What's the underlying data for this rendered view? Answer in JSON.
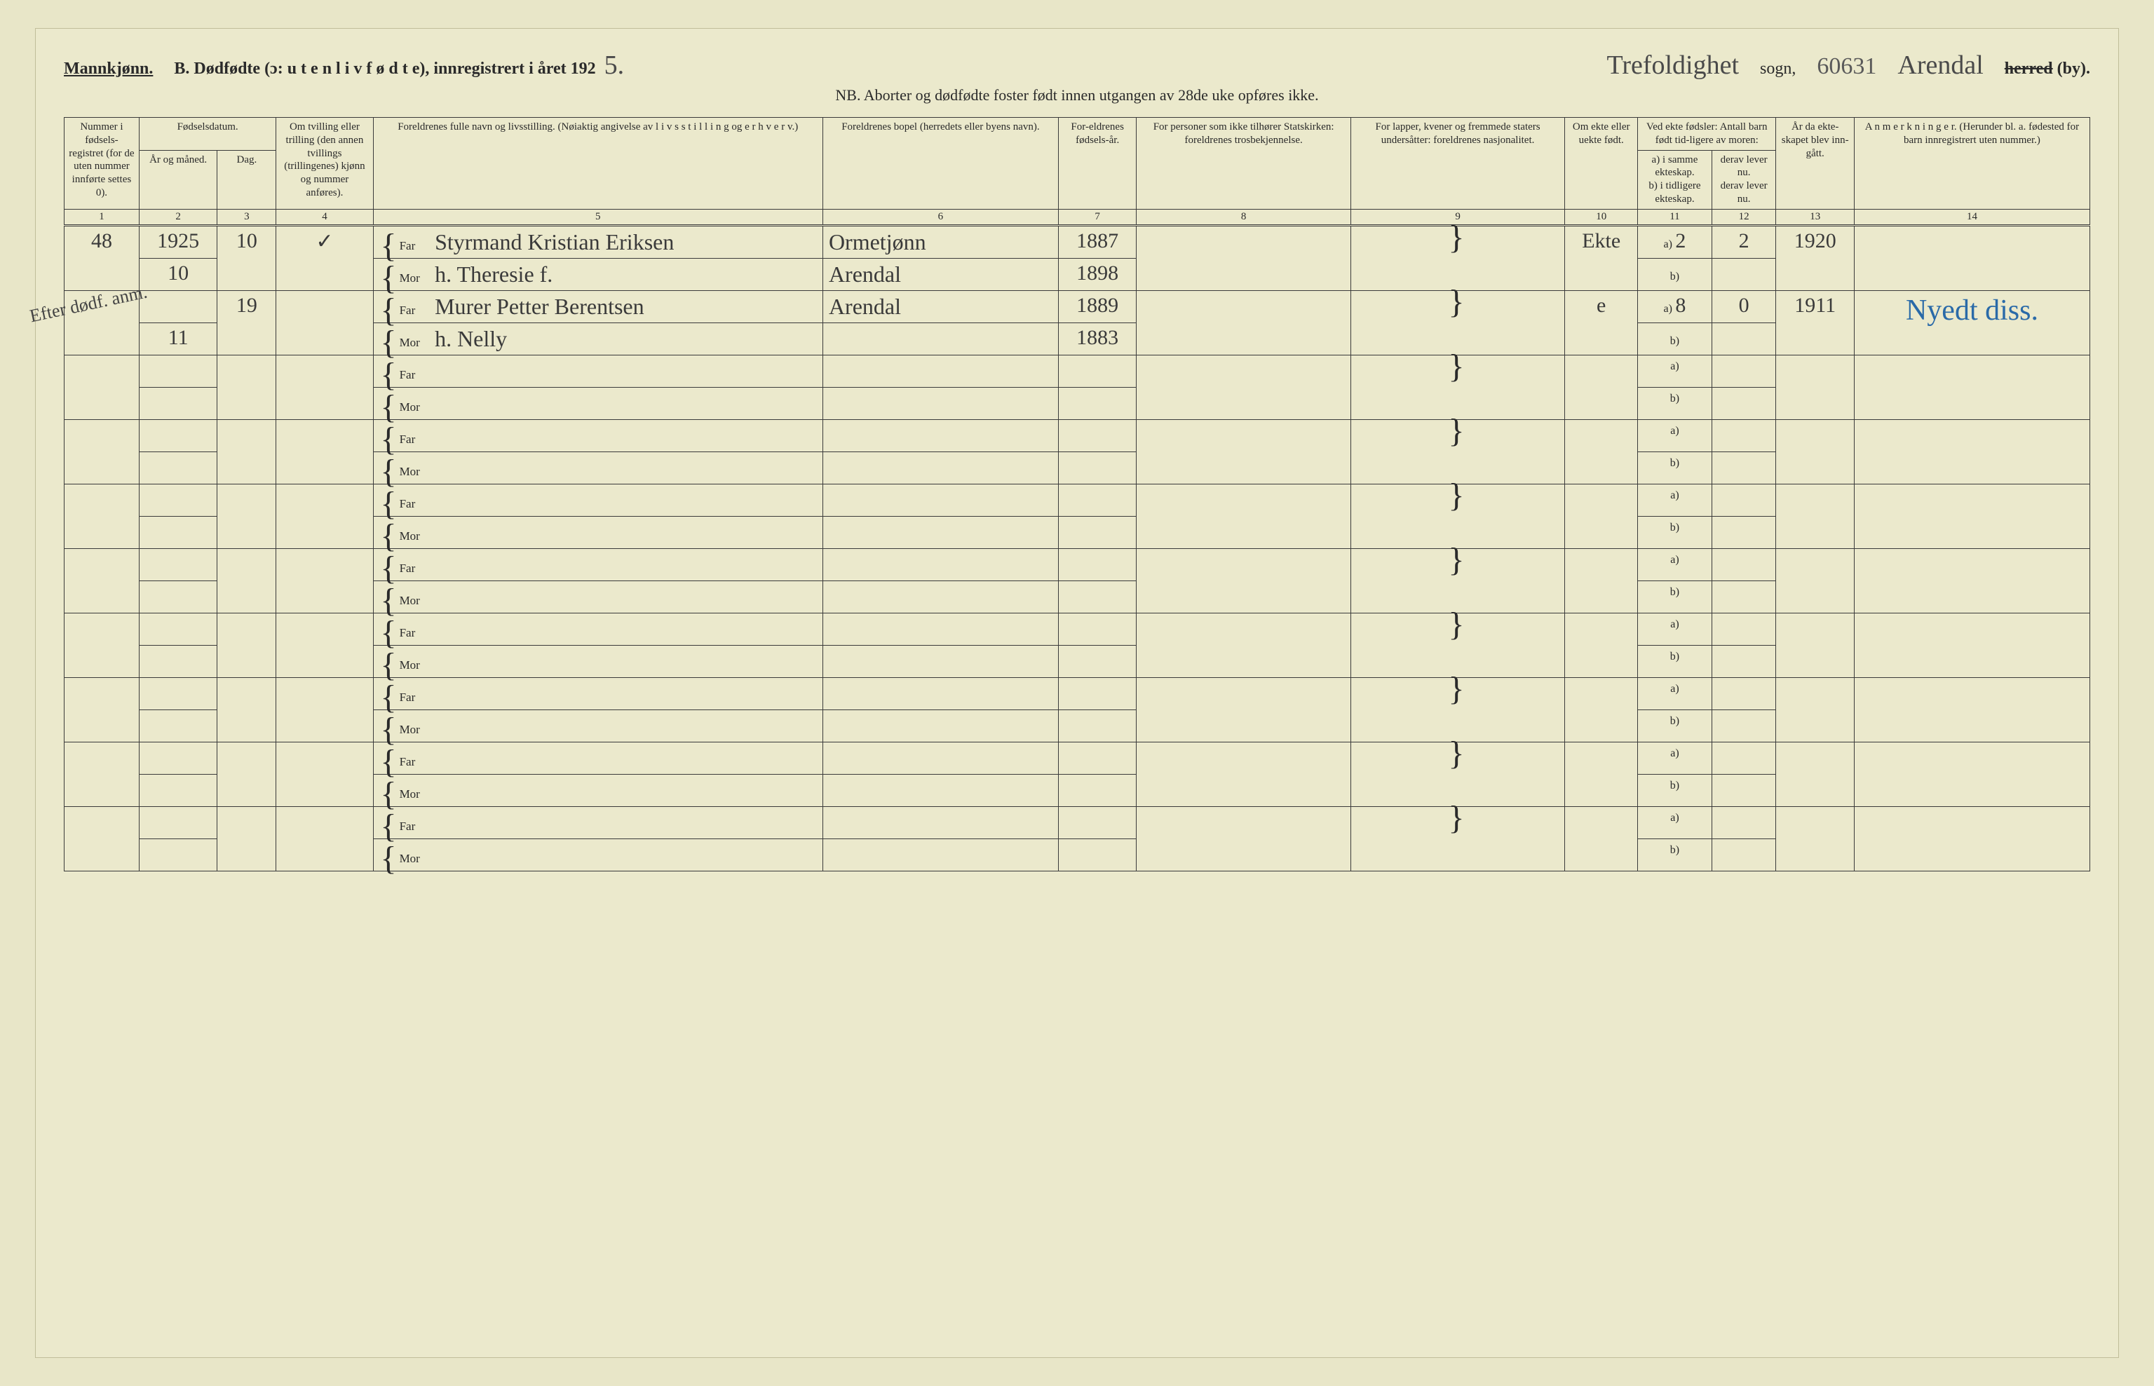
{
  "header": {
    "mannkjonn": "Mannkjønn.",
    "title_b": "B.  Dødfødte (ɔ: u t e n  l i v  f ø d t e),  innregistrert i året 192",
    "year_suffix": "5.",
    "sogn_hand": "Trefoldighet",
    "sogn_label": "sogn,",
    "arkiv_no": "60631",
    "herred_hand": "Arendal",
    "herred_label_strike": "herred",
    "herred_label_by": "(by).",
    "nb": "NB.  Aborter og dødfødte foster født innen utgangen av 28de uke opføres ikke."
  },
  "columns": {
    "c1": "Nummer i fødsels-registret (for de uten nummer innførte settes 0).",
    "c2_top": "Fødselsdatum.",
    "c2a": "År og måned.",
    "c2b": "Dag.",
    "c4": "Om tvilling eller trilling (den annen tvillings (trillingenes) kjønn og nummer anføres).",
    "c5": "Foreldrenes fulle navn og livsstilling. (Nøiaktig angivelse av l i v s s t i l l i n g og e r h v e r v.)",
    "c6": "Foreldrenes bopel (herredets eller byens navn).",
    "c7": "For-eldrenes fødsels-år.",
    "c8": "For personer som ikke tilhører Statskirken: foreldrenes trosbekjennelse.",
    "c9": "For lapper, kvener og fremmede staters undersåtter: foreldrenes nasjonalitet.",
    "c10": "Om ekte eller uekte født.",
    "c11_top": "Ved ekte fødsler: Antall barn født tid-ligere av moren:",
    "c11a": "a) i samme ekteskap.",
    "c11b": "derav lever nu.",
    "c11b2": "b) i tidligere ekteskap.",
    "c11b2d": "derav lever nu.",
    "c13": "År da ekte-skapet blev inn-gått.",
    "c14": "A n m e r k n i n g e r. (Herunder bl. a. fødested for barn innregistrert uten nummer.)",
    "nums": [
      "1",
      "2",
      "3",
      "4",
      "5",
      "6",
      "7",
      "8",
      "9",
      "10",
      "11",
      "12",
      "13",
      "14"
    ]
  },
  "labels": {
    "far": "Far",
    "mor": "Mor",
    "a": "a)",
    "b": "b)"
  },
  "rows": [
    {
      "margin": "",
      "nummer": "48",
      "aar": "1925",
      "maaned": "10",
      "dag": "10",
      "tv": "✓",
      "far_navn": "Styrmand Kristian Eriksen",
      "mor_navn": "h. Theresie f.",
      "far_bopel": "Ormetjønn",
      "mor_bopel": "Arendal",
      "far_fodeaar": "1887",
      "mor_fodeaar": "1898",
      "ekte": "Ekte",
      "a_val": "2",
      "a_lever": "2",
      "b_val": "",
      "aar_ekte": "1920",
      "anm": ""
    },
    {
      "margin": "Efter dødf. anm.",
      "nummer": "",
      "aar": "",
      "maaned": "11",
      "dag": "19",
      "tv": "",
      "far_navn": "Murer Petter Berentsen",
      "mor_navn": "h. Nelly",
      "far_bopel": "Arendal",
      "mor_bopel": "",
      "far_fodeaar": "1889",
      "mor_fodeaar": "1883",
      "ekte": "e",
      "a_val": "8",
      "a_lever": "0",
      "b_val": "",
      "aar_ekte": "1911",
      "anm": "Nyedt diss."
    }
  ],
  "empty_pairs": 8,
  "styling": {
    "page_bg": "#ebe9cc",
    "ink": "#2a2a2a",
    "hand_ink": "#3a3a3a",
    "blue_ink": "#2a6aa8",
    "red_line": "#d97a6a",
    "border": "#3a3a3a",
    "header_font_pt": 24,
    "body_font_pt": 18,
    "th_font_pt": 15,
    "hand_font_pt": 32
  }
}
